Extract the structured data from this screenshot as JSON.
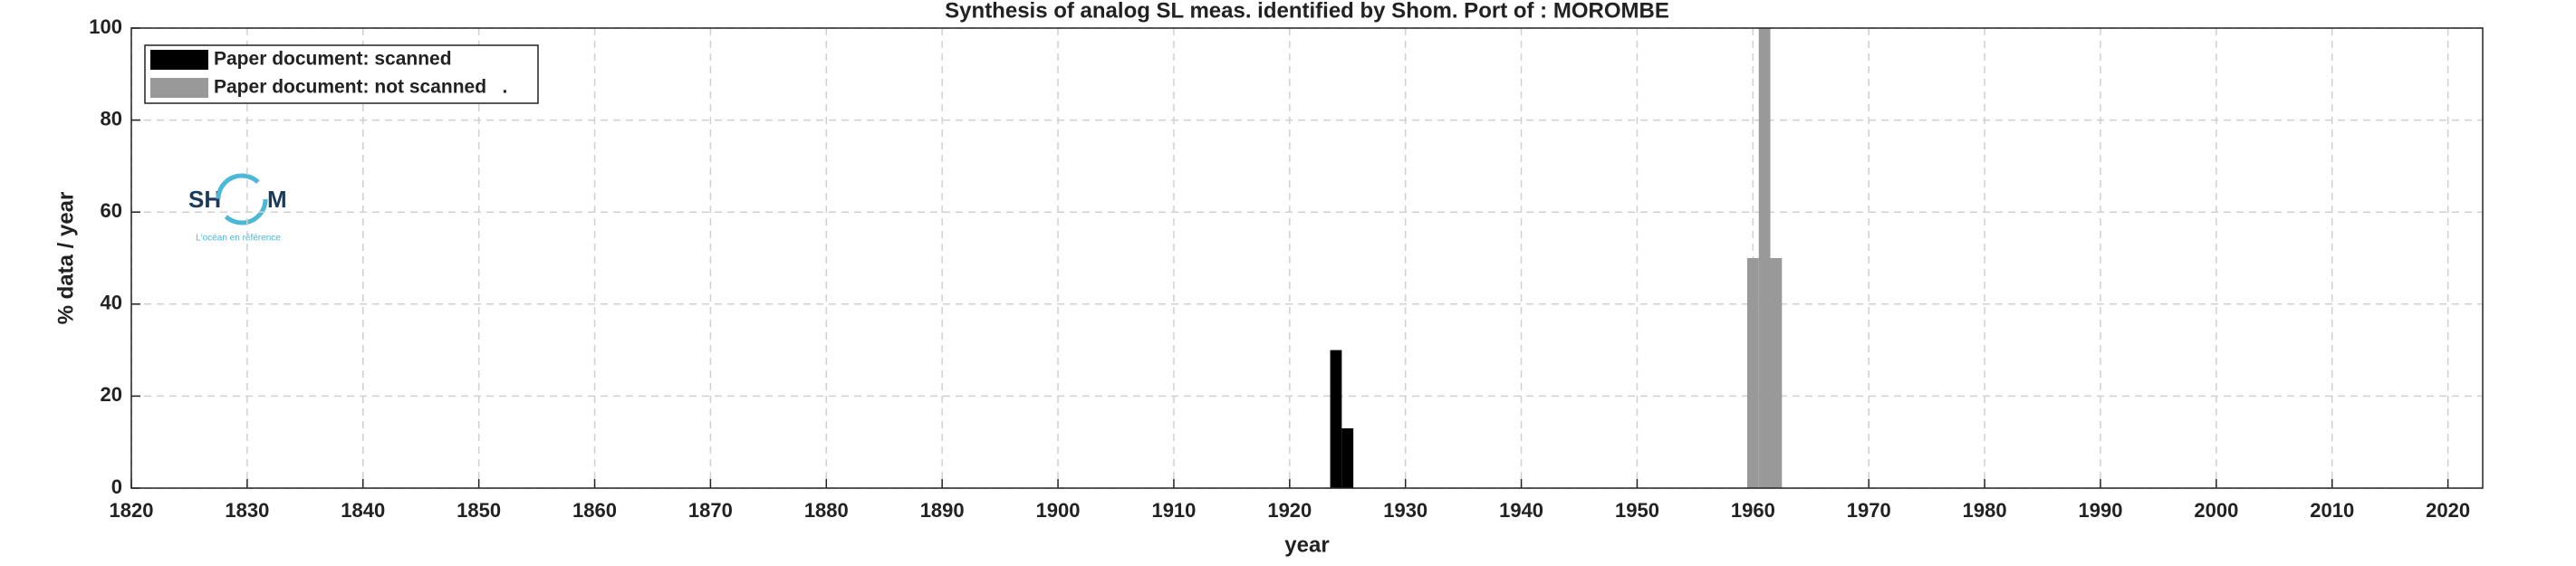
{
  "chart_data": {
    "type": "bar",
    "title": "Synthesis of analog SL meas. identified by Shom. Port of : MOROMBE",
    "xlabel": "year",
    "ylabel": "% data / year",
    "series": [
      {
        "name": "Paper document: scanned",
        "color": "#000000",
        "x": [
          1924,
          1925
        ],
        "values": [
          30,
          13
        ]
      },
      {
        "name": "Paper document: not scanned   .",
        "color": "#999999",
        "x": [
          1960,
          1961,
          1962
        ],
        "values": [
          50,
          100,
          50
        ]
      }
    ],
    "xlim": [
      1820,
      2023
    ],
    "xticks": [
      1820,
      1830,
      1840,
      1850,
      1860,
      1870,
      1880,
      1890,
      1900,
      1910,
      1920,
      1930,
      1940,
      1950,
      1960,
      1970,
      1980,
      1990,
      2000,
      2010,
      2020
    ],
    "ylim": [
      0,
      100
    ],
    "yticks": [
      0,
      20,
      40,
      60,
      80,
      100
    ],
    "grid": true,
    "legend": "upper left"
  },
  "logo": {
    "left": "SH",
    "right": "M",
    "tagline": "L'océan en référence"
  }
}
